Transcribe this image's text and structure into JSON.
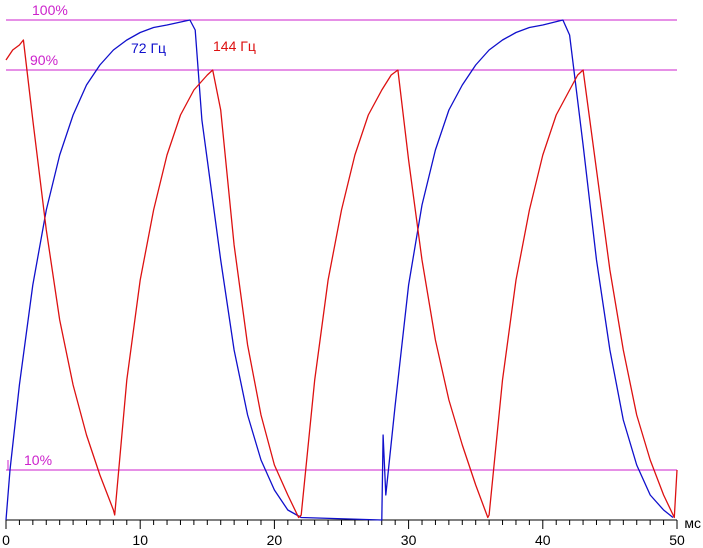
{
  "chart_data": {
    "type": "line",
    "xlabel": "мс",
    "xlim": [
      0,
      50
    ],
    "ylim": [
      0,
      100
    ],
    "x_ticks": [
      "0",
      "10",
      "20",
      "30",
      "40",
      "50"
    ],
    "reference_lines": [
      {
        "label": "100%",
        "value": 100
      },
      {
        "label": "90%",
        "value": 90
      },
      {
        "label": "10%",
        "value": 10
      }
    ],
    "series": [
      {
        "name": "72 Гц",
        "color": "#1010cc",
        "points": [
          [
            0,
            0
          ],
          [
            0.3,
            10
          ],
          [
            1,
            27
          ],
          [
            2,
            47
          ],
          [
            3,
            62
          ],
          [
            4,
            73
          ],
          [
            5,
            81
          ],
          [
            6,
            87
          ],
          [
            7,
            91
          ],
          [
            8,
            94
          ],
          [
            9,
            96
          ],
          [
            10,
            97.5
          ],
          [
            11,
            98.5
          ],
          [
            12,
            99
          ],
          [
            13.7,
            100
          ],
          [
            14.1,
            98
          ],
          [
            14.6,
            80
          ],
          [
            15,
            72
          ],
          [
            16,
            52
          ],
          [
            17,
            34
          ],
          [
            18,
            21
          ],
          [
            19,
            12
          ],
          [
            20,
            6
          ],
          [
            21,
            2
          ],
          [
            22,
            0.5
          ],
          [
            28,
            0
          ],
          [
            28.1,
            17
          ],
          [
            28.3,
            5
          ],
          [
            29,
            23
          ],
          [
            30,
            47
          ],
          [
            31,
            63
          ],
          [
            32,
            74
          ],
          [
            33,
            82
          ],
          [
            34,
            87
          ],
          [
            35,
            91
          ],
          [
            36,
            94
          ],
          [
            37,
            96
          ],
          [
            38,
            97.5
          ],
          [
            39,
            98.5
          ],
          [
            40,
            99
          ],
          [
            41.5,
            100
          ],
          [
            42,
            97
          ],
          [
            43,
            75
          ],
          [
            44,
            52
          ],
          [
            45,
            34
          ],
          [
            46,
            20
          ],
          [
            47,
            11
          ],
          [
            48,
            5
          ],
          [
            49,
            2
          ],
          [
            49.7,
            0.5
          ]
        ]
      },
      {
        "name": "144 Гц",
        "color": "#dd1111",
        "points": [
          [
            0,
            92
          ],
          [
            0.5,
            94
          ],
          [
            1,
            95
          ],
          [
            1.3,
            96
          ],
          [
            2,
            80
          ],
          [
            3,
            58
          ],
          [
            4,
            40
          ],
          [
            5,
            27
          ],
          [
            6,
            17
          ],
          [
            7,
            9
          ],
          [
            8,
            2
          ],
          [
            8.1,
            1
          ],
          [
            9,
            28
          ],
          [
            10,
            48
          ],
          [
            11,
            62
          ],
          [
            12,
            73
          ],
          [
            13,
            81
          ],
          [
            14,
            86
          ],
          [
            15,
            89
          ],
          [
            15.4,
            90
          ],
          [
            16,
            82
          ],
          [
            17,
            55
          ],
          [
            18,
            35
          ],
          [
            19,
            21
          ],
          [
            20,
            11
          ],
          [
            21,
            5
          ],
          [
            21.8,
            0.5
          ],
          [
            22,
            1
          ],
          [
            23,
            28
          ],
          [
            24,
            48
          ],
          [
            25,
            62
          ],
          [
            26,
            73
          ],
          [
            27,
            81
          ],
          [
            28,
            86
          ],
          [
            28.7,
            89
          ],
          [
            29.2,
            90
          ],
          [
            30,
            72
          ],
          [
            31,
            52
          ],
          [
            32,
            36
          ],
          [
            33,
            24
          ],
          [
            34,
            15
          ],
          [
            35,
            7
          ],
          [
            35.9,
            0.5
          ],
          [
            36,
            1
          ],
          [
            37,
            28
          ],
          [
            38,
            48
          ],
          [
            39,
            62
          ],
          [
            40,
            73
          ],
          [
            41,
            81
          ],
          [
            42,
            86
          ],
          [
            42.6,
            89
          ],
          [
            43,
            90
          ],
          [
            43.5,
            80
          ],
          [
            44,
            70
          ],
          [
            45,
            50
          ],
          [
            46,
            34
          ],
          [
            47,
            21
          ],
          [
            48,
            12
          ],
          [
            49,
            5
          ],
          [
            49.8,
            0.5
          ],
          [
            50,
            10
          ]
        ]
      }
    ]
  }
}
